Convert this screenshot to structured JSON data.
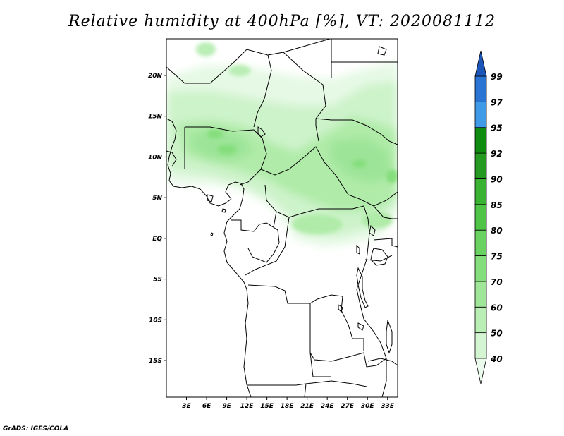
{
  "title": "Relative humidity at 400hPa [%], VT: 2020081112",
  "credit": "GrADS: IGES/COLA",
  "map": {
    "lat_range": [
      -19.5,
      24.5
    ],
    "lon_range": [
      0,
      34.5
    ],
    "lat_ticks": [
      {
        "value": 20,
        "label": "20N"
      },
      {
        "value": 15,
        "label": "15N"
      },
      {
        "value": 10,
        "label": "10N"
      },
      {
        "value": 5,
        "label": "5N"
      },
      {
        "value": 0,
        "label": "EQ"
      },
      {
        "value": -5,
        "label": "5S"
      },
      {
        "value": -10,
        "label": "10S"
      },
      {
        "value": -15,
        "label": "15S"
      }
    ],
    "lon_ticks": [
      {
        "value": 3,
        "label": "3E"
      },
      {
        "value": 6,
        "label": "6E"
      },
      {
        "value": 9,
        "label": "9E"
      },
      {
        "value": 12,
        "label": "12E"
      },
      {
        "value": 15,
        "label": "15E"
      },
      {
        "value": 18,
        "label": "18E"
      },
      {
        "value": 21,
        "label": "21E"
      },
      {
        "value": 24,
        "label": "24E"
      },
      {
        "value": 27,
        "label": "27E"
      },
      {
        "value": 30,
        "label": "30E"
      },
      {
        "value": 33,
        "label": "33E"
      }
    ]
  },
  "colorbar": {
    "labels": [
      "40",
      "50",
      "60",
      "70",
      "75",
      "80",
      "85",
      "90",
      "92",
      "95",
      "97",
      "99"
    ],
    "colors": [
      "#ebfbeb",
      "#d4f5d2",
      "#b9eeb5",
      "#9fe699",
      "#84de7b",
      "#69d260",
      "#4fc447",
      "#3ab232",
      "#249b20",
      "#0f8c10",
      "#3f9ae8",
      "#2a74d4",
      "#1b56b8"
    ]
  }
}
